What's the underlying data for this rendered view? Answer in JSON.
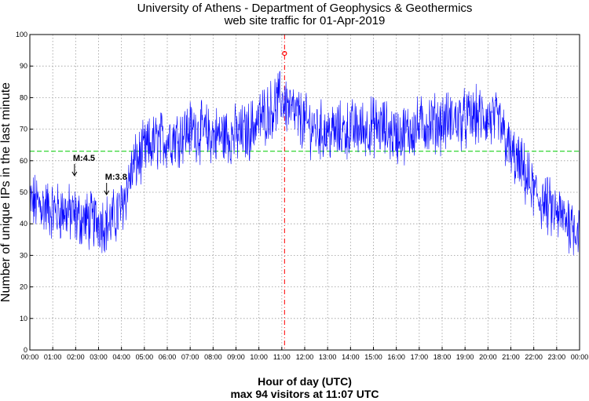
{
  "chart_data": {
    "type": "line",
    "title": "University of Athens - Department of Geophysics & Geothermics",
    "subtitle": "web site traffic for 01-Apr-2019",
    "xlabel": "Hour of day (UTC)",
    "ylabel": "Number of unique IPs in the last minute",
    "footer": "max 94 visitors at 11:07 UTC",
    "xlim": [
      0,
      24
    ],
    "ylim": [
      0,
      100
    ],
    "grid": true,
    "x_ticks": [
      "00:00",
      "01:00",
      "02:00",
      "03:00",
      "04:00",
      "05:00",
      "06:00",
      "07:00",
      "08:00",
      "09:00",
      "10:00",
      "11:00",
      "12:00",
      "13:00",
      "14:00",
      "15:00",
      "16:00",
      "17:00",
      "18:00",
      "19:00",
      "20:00",
      "21:00",
      "22:00",
      "23:00",
      "00:00"
    ],
    "y_ticks": [
      0,
      10,
      20,
      30,
      40,
      50,
      60,
      70,
      80,
      90,
      100
    ],
    "series": [
      {
        "color": "#0000ff",
        "x": [
          0,
          0.5,
          1,
          1.5,
          2,
          2.5,
          3,
          3.5,
          4,
          4.5,
          5,
          5.5,
          6,
          6.5,
          7,
          7.5,
          8,
          8.5,
          9,
          9.5,
          10,
          10.5,
          11,
          11.5,
          12,
          12.5,
          13,
          13.5,
          14,
          14.5,
          15,
          15.5,
          16,
          16.5,
          17,
          17.5,
          18,
          18.5,
          19,
          19.5,
          20,
          20.5,
          21,
          21.5,
          22,
          22.5,
          23,
          23.5,
          24
        ],
        "y": [
          47,
          46,
          44,
          44,
          42,
          41,
          41,
          40,
          45,
          58,
          63,
          66,
          67,
          68,
          70,
          69,
          68,
          68,
          68,
          69,
          73,
          76,
          80,
          75,
          72,
          70,
          69,
          69,
          70,
          70,
          71,
          70,
          68,
          69,
          71,
          72,
          72,
          73,
          73,
          74,
          73,
          72,
          62,
          57,
          50,
          46,
          43,
          41,
          38
        ]
      }
    ],
    "mean_line": {
      "y": 63,
      "color": "#00cc00"
    },
    "max_marker": {
      "x": 11.12,
      "y": 94,
      "color": "#ff0000"
    },
    "annotations": [
      {
        "text": "M:4.5",
        "x": 1.95,
        "y": 55
      },
      {
        "text": "M:3.8",
        "x": 3.35,
        "y": 49
      }
    ]
  }
}
